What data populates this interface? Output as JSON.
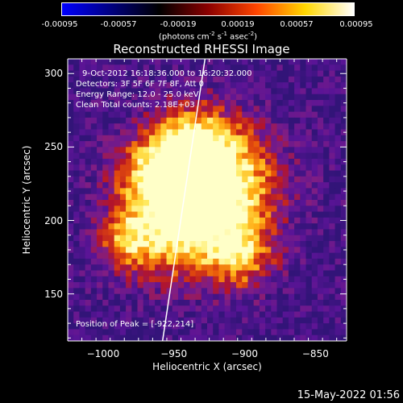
{
  "colorbar": {
    "gradient": [
      "#0000ff",
      "#000080",
      "#000000",
      "#8b0000",
      "#ff4500",
      "#ffd700",
      "#ffffff"
    ],
    "labels": [
      "-0.00095",
      "-0.00057",
      "-0.00019",
      "0.00019",
      "0.00057",
      "0.00095"
    ],
    "unit_text": "(photons cm",
    "unit_sup1": "-2",
    "unit_mid": " s",
    "unit_sup2": "-1",
    "unit_mid2": " asec",
    "unit_sup3": "-2",
    "unit_end": ")"
  },
  "chart_data": {
    "type": "heatmap",
    "title": "Reconstructed RHESSI Image",
    "xlabel": "Heliocentric X (arcsec)",
    "ylabel": "Heliocentric Y (arcsec)",
    "xlim": [
      -1025,
      -828
    ],
    "ylim": [
      118,
      310
    ],
    "x_ticks": [
      -1000,
      -950,
      -900,
      -850
    ],
    "x_tick_labels": [
      "−1000",
      "−950",
      "−900",
      "−850"
    ],
    "y_ticks": [
      150,
      200,
      250,
      300
    ],
    "y_tick_labels": [
      "150",
      "200",
      "250",
      "300"
    ],
    "colorbar_range": [
      -0.00095,
      0.00095
    ],
    "peak": [
      -922,
      214
    ],
    "limb_line": [
      [
        -958,
        118
      ],
      [
        -928,
        310
      ]
    ],
    "annotations": [
      "9-Oct-2012 16:18:36.000 to 16:20:32.000",
      "Detectors: 3F 5F 6F 7F 8F, Att 0",
      "Energy Range: 12.0 - 25.0 keV",
      "Clean     Total counts: 2.18E+03"
    ],
    "peak_label": "Position of Peak = [-922,214]"
  },
  "footer": "15-May-2022 01:56"
}
